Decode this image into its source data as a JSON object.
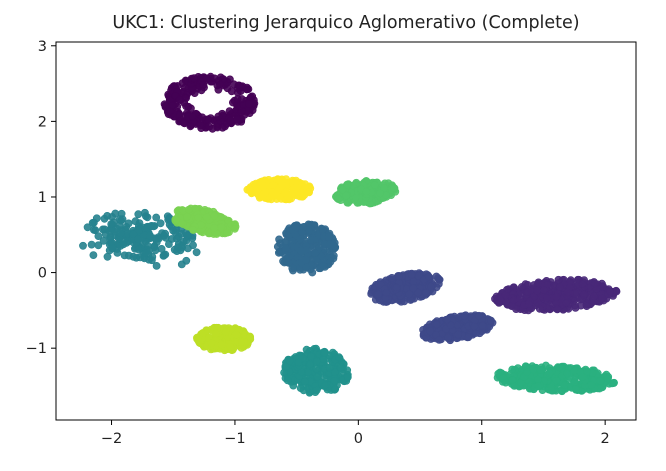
{
  "chart_data": {
    "type": "scatter",
    "title": "UKC1: Clustering Jerarquico Aglomerativo (Complete)",
    "xlabel": "",
    "ylabel": "",
    "xlim": [
      -2.45,
      2.25
    ],
    "ylim": [
      -1.95,
      3.05
    ],
    "xticks": [
      -2,
      -1,
      0,
      1,
      2
    ],
    "xtick_labels": [
      "−2",
      "−1",
      "0",
      "1",
      "2"
    ],
    "yticks": [
      -1,
      0,
      1,
      2,
      3
    ],
    "ytick_labels": [
      "−1",
      "0",
      "1",
      "2",
      "3"
    ],
    "grid": false,
    "legend": "none",
    "colormap": "viridis",
    "clusters": [
      {
        "cluster": 0,
        "color": "#440154",
        "shape": "ring",
        "cx": -1.2,
        "cy": 2.25,
        "rx": 0.38,
        "ry": 0.35,
        "n": 260
      },
      {
        "cluster": 1,
        "color": "#482878",
        "shape": "ellipse",
        "cx": 1.6,
        "cy": -0.3,
        "rx": 0.5,
        "ry": 0.2,
        "n": 340,
        "angle": 8
      },
      {
        "cluster": 2,
        "color": "#3e4989",
        "shape": "ellipse",
        "cx": 0.38,
        "cy": -0.2,
        "rx": 0.3,
        "ry": 0.17,
        "n": 260,
        "angle": 22
      },
      {
        "cluster": 3,
        "color": "#3e4989",
        "shape": "ellipse",
        "cx": 0.8,
        "cy": -0.73,
        "rx": 0.3,
        "ry": 0.15,
        "n": 240,
        "angle": 18
      },
      {
        "cluster": 4,
        "color": "#31688e",
        "shape": "ellipse",
        "cx": -0.42,
        "cy": 0.32,
        "rx": 0.24,
        "ry": 0.33,
        "n": 260,
        "angle": 0
      },
      {
        "cluster": 5,
        "color": "#26828e",
        "shape": "sparse",
        "cx": -1.75,
        "cy": 0.5,
        "rx": 0.48,
        "ry": 0.3,
        "n": 200,
        "angle": -10
      },
      {
        "cluster": 6,
        "color": "#21918c",
        "shape": "ellipse",
        "cx": -0.34,
        "cy": -1.3,
        "rx": 0.27,
        "ry": 0.3,
        "n": 240,
        "angle": 0
      },
      {
        "cluster": 7,
        "color": "#2ab07f",
        "shape": "ellipse",
        "cx": 1.6,
        "cy": -1.4,
        "rx": 0.48,
        "ry": 0.17,
        "n": 340,
        "angle": -4
      },
      {
        "cluster": 8,
        "color": "#52c569",
        "shape": "ellipse",
        "cx": 0.06,
        "cy": 1.06,
        "rx": 0.25,
        "ry": 0.15,
        "n": 220,
        "angle": 10
      },
      {
        "cluster": 9,
        "color": "#7ad151",
        "shape": "ellipse",
        "cx": -1.25,
        "cy": 0.68,
        "rx": 0.27,
        "ry": 0.15,
        "n": 200,
        "angle": -22
      },
      {
        "cluster": 10,
        "color": "#bddf26",
        "shape": "ellipse",
        "cx": -1.09,
        "cy": -0.88,
        "rx": 0.22,
        "ry": 0.16,
        "n": 200,
        "angle": 0
      },
      {
        "cluster": 11,
        "color": "#fde725",
        "shape": "ellipse",
        "cx": -0.64,
        "cy": 1.1,
        "rx": 0.26,
        "ry": 0.14,
        "n": 200,
        "angle": 0
      }
    ]
  }
}
